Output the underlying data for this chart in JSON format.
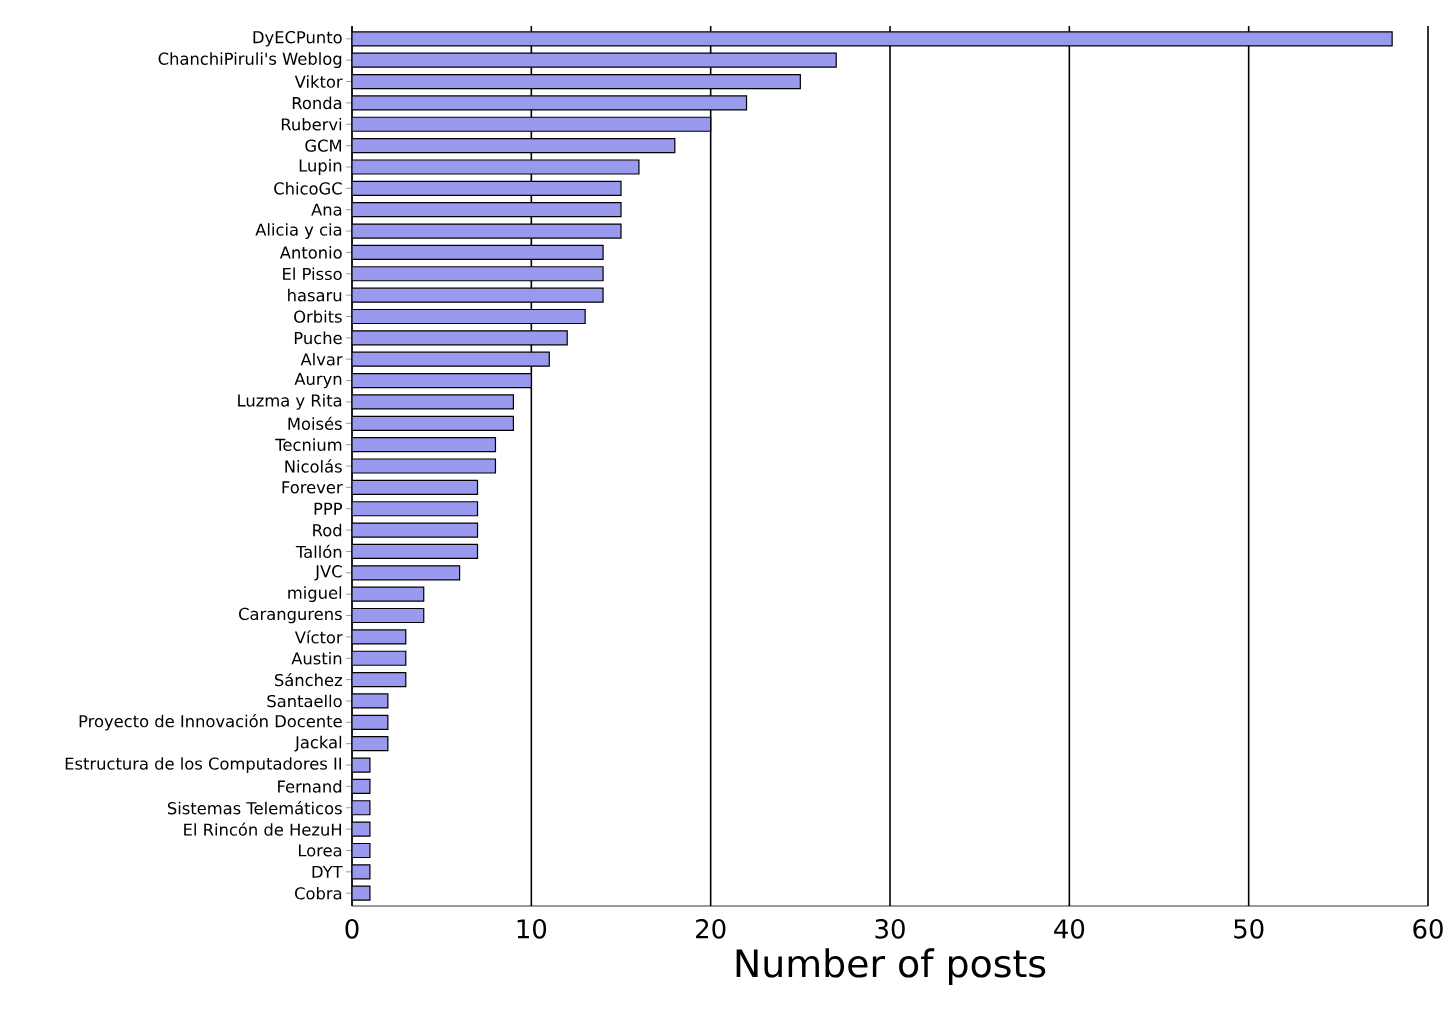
{
  "chart_data": {
    "type": "bar",
    "orientation": "horizontal",
    "xlabel": "Number of posts",
    "categories": [
      "DyECPunto",
      "ChanchiPiruli's Weblog",
      "Viktor",
      "Ronda",
      "Rubervi",
      "GCM",
      "Lupin",
      "ChicoGC",
      "Ana",
      "Alicia y cia",
      "Antonio",
      "El Pisso",
      "hasaru",
      "Orbits",
      "Puche",
      "Alvar",
      "Auryn",
      "Luzma y Rita",
      "Moisés",
      "Tecnium",
      "Nicolás",
      "Forever",
      "PPP",
      "Rod",
      "Tallón",
      "JVC",
      "miguel",
      "Carangurens",
      "Víctor",
      "Austin",
      "Sánchez",
      "Santaello",
      "Proyecto de Innovación Docente",
      "Jackal",
      "Estructura de los Computadores II",
      "Fernand",
      "Sistemas Telemáticos",
      "El Rincón de HezuH",
      "Lorea",
      "DYT",
      "Cobra"
    ],
    "values": [
      58,
      27,
      25,
      22,
      20,
      18,
      16,
      15,
      15,
      15,
      14,
      14,
      14,
      13,
      12,
      11,
      10,
      9,
      9,
      8,
      8,
      7,
      7,
      7,
      7,
      6,
      4,
      4,
      3,
      3,
      3,
      2,
      2,
      2,
      1,
      1,
      1,
      1,
      1,
      1,
      1
    ],
    "color": "#9999ee",
    "xlim": [
      0,
      60
    ],
    "xticks": [
      0,
      10,
      20,
      30,
      40,
      50,
      60
    ],
    "grid": "x"
  }
}
